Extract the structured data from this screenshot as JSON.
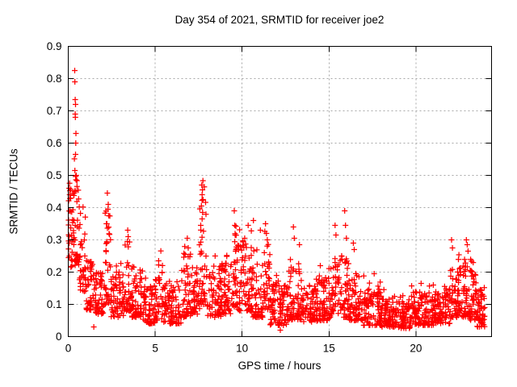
{
  "chart_data": {
    "type": "scatter",
    "title": "Day 354 of 2021, SRMTID for receiver joe2",
    "xlabel": "GPS time / hours",
    "ylabel": "SRMTID / TECUs",
    "xlim": [
      0,
      24.35
    ],
    "ylim": [
      0,
      0.9
    ],
    "xticks": [
      "0",
      "5",
      "10",
      "15",
      "20"
    ],
    "yticks": [
      "0",
      "0.1",
      "0.2",
      "0.3",
      "0.4",
      "0.5",
      "0.6",
      "0.7",
      "0.8",
      "0.9"
    ],
    "grid": true,
    "legend": "none",
    "marker": {
      "shape": "plus",
      "color": "#ff0000",
      "size": 7
    },
    "colors": {
      "axis": "#000000",
      "grid": "#a8a8a8",
      "background": "#ffffff",
      "text": "#000000"
    },
    "seed": 20211354,
    "column_step_hours": 0.025,
    "bands_schema": "t_start,t_end,count,y_min,y_max,skew_exponent",
    "bands": [
      [
        0.0,
        0.3,
        32,
        0.2,
        0.46,
        1.2
      ],
      [
        0.3,
        0.65,
        40,
        0.22,
        0.5,
        1.3
      ],
      [
        0.65,
        1.0,
        35,
        0.14,
        0.36,
        1.3
      ],
      [
        1.0,
        1.5,
        45,
        0.08,
        0.24,
        1.6
      ],
      [
        1.5,
        2.1,
        55,
        0.07,
        0.2,
        1.6
      ],
      [
        2.1,
        2.45,
        35,
        0.1,
        0.4,
        1.8
      ],
      [
        2.45,
        3.2,
        65,
        0.06,
        0.2,
        1.6
      ],
      [
        3.2,
        3.65,
        40,
        0.08,
        0.3,
        1.8
      ],
      [
        3.65,
        4.3,
        55,
        0.06,
        0.23,
        1.7
      ],
      [
        4.3,
        5.0,
        60,
        0.04,
        0.16,
        1.5
      ],
      [
        5.0,
        5.45,
        40,
        0.05,
        0.23,
        1.7
      ],
      [
        5.45,
        6.5,
        85,
        0.04,
        0.16,
        1.5
      ],
      [
        6.5,
        7.1,
        50,
        0.06,
        0.29,
        1.9
      ],
      [
        7.1,
        7.55,
        40,
        0.07,
        0.22,
        1.6
      ],
      [
        7.55,
        7.95,
        40,
        0.1,
        0.42,
        1.8
      ],
      [
        7.95,
        8.8,
        70,
        0.06,
        0.22,
        1.7
      ],
      [
        8.8,
        9.4,
        50,
        0.07,
        0.24,
        1.6
      ],
      [
        9.4,
        9.75,
        35,
        0.09,
        0.33,
        1.8
      ],
      [
        9.75,
        10.55,
        70,
        0.08,
        0.31,
        1.8
      ],
      [
        10.55,
        11.2,
        55,
        0.06,
        0.27,
        1.8
      ],
      [
        11.2,
        11.6,
        35,
        0.08,
        0.31,
        1.8
      ],
      [
        11.6,
        12.6,
        90,
        0.035,
        0.17,
        1.5
      ],
      [
        12.6,
        13.4,
        70,
        0.05,
        0.22,
        1.8
      ],
      [
        13.4,
        14.3,
        75,
        0.045,
        0.16,
        1.5
      ],
      [
        14.3,
        15.1,
        65,
        0.05,
        0.19,
        1.6
      ],
      [
        15.1,
        15.6,
        40,
        0.07,
        0.27,
        1.8
      ],
      [
        15.6,
        16.15,
        45,
        0.06,
        0.26,
        1.8
      ],
      [
        16.15,
        17.0,
        70,
        0.05,
        0.19,
        1.7
      ],
      [
        17.0,
        18.0,
        85,
        0.035,
        0.15,
        1.5
      ],
      [
        18.0,
        19.0,
        90,
        0.03,
        0.13,
        1.5
      ],
      [
        19.0,
        19.7,
        65,
        0.025,
        0.115,
        1.4
      ],
      [
        19.7,
        21.0,
        110,
        0.035,
        0.14,
        1.5
      ],
      [
        21.0,
        22.0,
        90,
        0.04,
        0.15,
        1.5
      ],
      [
        22.0,
        22.45,
        40,
        0.06,
        0.22,
        1.7
      ],
      [
        22.45,
        23.05,
        55,
        0.06,
        0.24,
        1.7
      ],
      [
        23.05,
        23.45,
        45,
        0.05,
        0.21,
        1.6
      ],
      [
        23.45,
        23.95,
        55,
        0.03,
        0.15,
        1.4
      ]
    ],
    "spike_points_schema": "gps_hour,srmtid_tecus",
    "spike_points": [
      [
        0.37,
        0.825
      ],
      [
        0.38,
        0.79
      ],
      [
        0.4,
        0.735
      ],
      [
        0.42,
        0.72
      ],
      [
        0.4,
        0.69
      ],
      [
        0.41,
        0.68
      ],
      [
        0.44,
        0.63
      ],
      [
        0.43,
        0.6
      ],
      [
        0.42,
        0.565
      ],
      [
        0.38,
        0.515
      ],
      [
        0.46,
        0.5
      ],
      [
        0.05,
        0.46
      ],
      [
        0.08,
        0.44
      ],
      [
        2.25,
        0.445
      ],
      [
        2.3,
        0.41
      ],
      [
        2.28,
        0.395
      ],
      [
        2.33,
        0.375
      ],
      [
        2.22,
        0.35
      ],
      [
        3.42,
        0.33
      ],
      [
        3.45,
        0.31
      ],
      [
        3.4,
        0.295
      ],
      [
        5.2,
        0.235
      ],
      [
        6.85,
        0.305
      ],
      [
        6.9,
        0.275
      ],
      [
        7.68,
        0.47
      ],
      [
        7.72,
        0.455
      ],
      [
        7.7,
        0.44
      ],
      [
        7.75,
        0.425
      ],
      [
        7.66,
        0.405
      ],
      [
        7.73,
        0.385
      ],
      [
        7.7,
        0.365
      ],
      [
        7.62,
        0.345
      ],
      [
        8.45,
        0.25
      ],
      [
        9.55,
        0.39
      ],
      [
        9.58,
        0.345
      ],
      [
        9.6,
        0.315
      ],
      [
        10.15,
        0.305
      ],
      [
        10.35,
        0.345
      ],
      [
        10.65,
        0.36
      ],
      [
        11.05,
        0.33
      ],
      [
        11.35,
        0.35
      ],
      [
        11.4,
        0.32
      ],
      [
        11.45,
        0.3
      ],
      [
        12.95,
        0.34
      ],
      [
        13.0,
        0.305
      ],
      [
        13.3,
        0.285
      ],
      [
        14.5,
        0.22
      ],
      [
        15.35,
        0.345
      ],
      [
        15.4,
        0.315
      ],
      [
        15.9,
        0.39
      ],
      [
        15.95,
        0.345
      ],
      [
        16.0,
        0.305
      ],
      [
        16.4,
        0.29
      ],
      [
        16.45,
        0.27
      ],
      [
        17.6,
        0.195
      ],
      [
        20.3,
        0.165
      ],
      [
        21.0,
        0.16
      ],
      [
        22.05,
        0.3
      ],
      [
        22.1,
        0.275
      ],
      [
        22.9,
        0.3
      ],
      [
        22.95,
        0.285
      ],
      [
        23.0,
        0.265
      ],
      [
        1.47,
        0.03
      ],
      [
        12.2,
        0.02
      ]
    ]
  }
}
